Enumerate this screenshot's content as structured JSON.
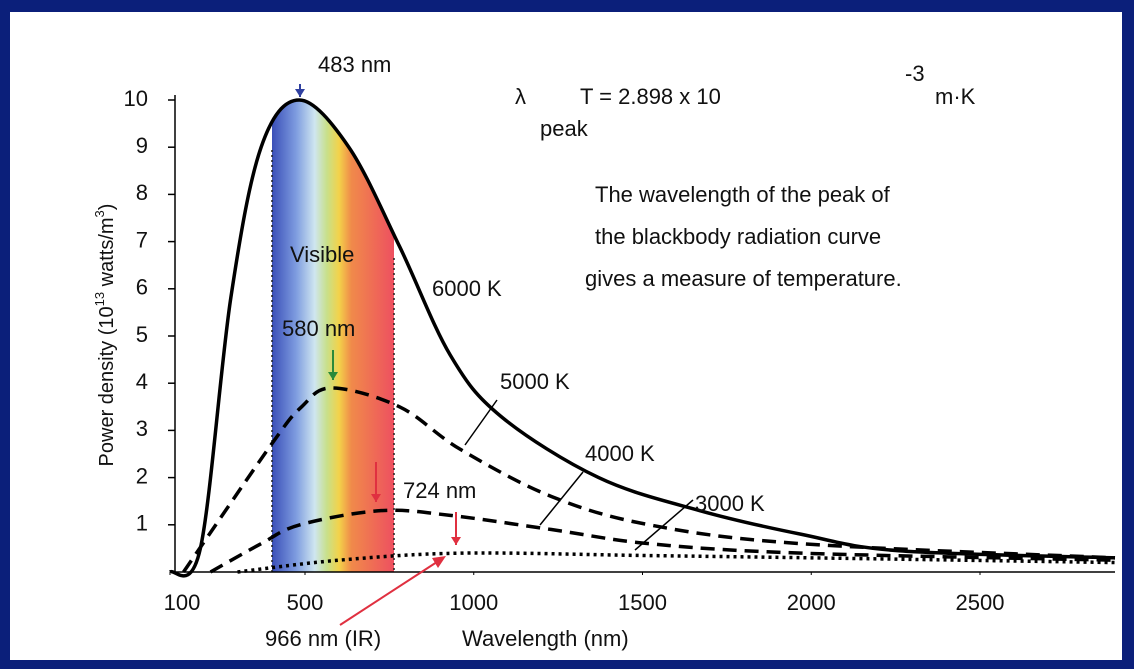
{
  "chart_data": {
    "type": "line",
    "equation": {
      "symbol": "λ",
      "subscript": "peak",
      "main": "T = 2.898  x 10",
      "exponent": "-3",
      "unit": "m·K"
    },
    "description": [
      "The wavelength of the peak of",
      "the blackbody radiation curve",
      "gives a measure of temperature."
    ],
    "ylabel_parts": [
      "Power density (10",
      "13",
      " watts/m",
      "3",
      ")"
    ],
    "xlabel": "Wavelength (nm)",
    "band_label": "Visible",
    "peak_labels": [
      "483 nm",
      "580 nm",
      "724 nm",
      "966 nm (IR)"
    ],
    "xlim": [
      100,
      2900
    ],
    "ylim": [
      0,
      10
    ],
    "xticks": [
      100,
      500,
      1000,
      1500,
      2000,
      2500
    ],
    "yticks": [
      1,
      2,
      3,
      4,
      5,
      6,
      7,
      8,
      9,
      10
    ],
    "series": [
      {
        "name": "6000 K",
        "color": "#000000",
        "dash": "none",
        "x": [
          100,
          190,
          280,
          370,
          483,
          630,
          780,
          930,
          1080,
          1370,
          1670,
          1970,
          2260,
          2900
        ],
        "values": [
          0,
          0.5,
          5.8,
          9,
          10,
          9,
          6.9,
          4.6,
          3.3,
          2,
          1.3,
          0.8,
          0.45,
          0.3
        ]
      },
      {
        "name": "5000 K",
        "color": "#000000",
        "dash": "dashed",
        "x": [
          140,
          400,
          490,
          580,
          780,
          960,
          1230,
          1520,
          1970,
          2900
        ],
        "values": [
          0,
          2.7,
          3.5,
          3.9,
          3.5,
          2.6,
          1.6,
          1.0,
          0.6,
          0.3
        ]
      },
      {
        "name": "4000 K",
        "color": "#000000",
        "dash": "dashed",
        "x": [
          220,
          370,
          485,
          724,
          930,
          1230,
          1520,
          1970,
          2900
        ],
        "values": [
          0,
          0.6,
          1.0,
          1.3,
          1.2,
          0.9,
          0.6,
          0.4,
          0.25
        ]
      },
      {
        "name": "3000 K",
        "color": "#000000",
        "dash": "dotted",
        "x": [
          300,
          600,
          966,
          1500,
          2000,
          2900
        ],
        "values": [
          0,
          0.25,
          0.4,
          0.35,
          0.3,
          0.2
        ]
      }
    ]
  }
}
